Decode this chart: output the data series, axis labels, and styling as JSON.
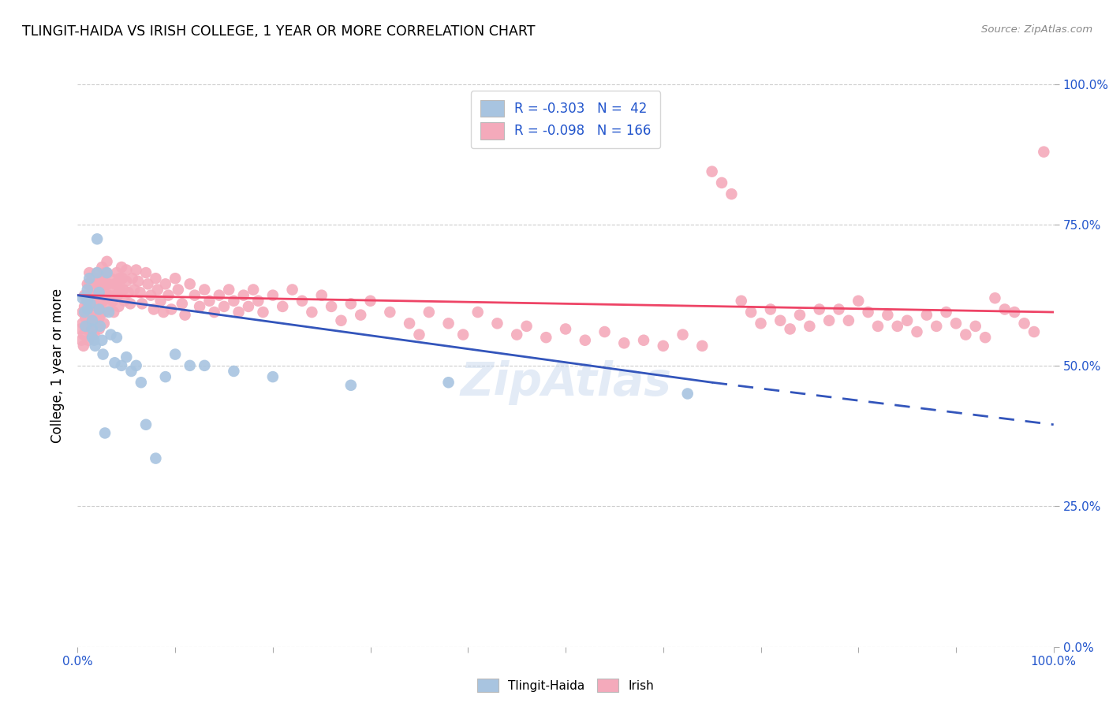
{
  "title": "TLINGIT-HAIDA VS IRISH COLLEGE, 1 YEAR OR MORE CORRELATION CHART",
  "source": "Source: ZipAtlas.com",
  "ylabel": "College, 1 year or more",
  "legend_blue_label": "R = -0.303   N =  42",
  "legend_pink_label": "R = -0.098   N = 166",
  "legend_bottom": [
    "Tlingit-Haida",
    "Irish"
  ],
  "blue_color": "#A8C4E0",
  "pink_color": "#F4AABB",
  "blue_line_color": "#3355BB",
  "pink_line_color": "#EE4466",
  "watermark": "ZipAtlas",
  "blue_scatter": [
    [
      0.005,
      0.62
    ],
    [
      0.007,
      0.595
    ],
    [
      0.008,
      0.57
    ],
    [
      0.01,
      0.635
    ],
    [
      0.01,
      0.615
    ],
    [
      0.01,
      0.6
    ],
    [
      0.012,
      0.655
    ],
    [
      0.013,
      0.61
    ],
    [
      0.015,
      0.58
    ],
    [
      0.015,
      0.565
    ],
    [
      0.015,
      0.55
    ],
    [
      0.017,
      0.545
    ],
    [
      0.018,
      0.535
    ],
    [
      0.02,
      0.725
    ],
    [
      0.02,
      0.665
    ],
    [
      0.022,
      0.63
    ],
    [
      0.022,
      0.6
    ],
    [
      0.023,
      0.57
    ],
    [
      0.025,
      0.545
    ],
    [
      0.026,
      0.52
    ],
    [
      0.028,
      0.38
    ],
    [
      0.03,
      0.665
    ],
    [
      0.032,
      0.595
    ],
    [
      0.034,
      0.555
    ],
    [
      0.038,
      0.505
    ],
    [
      0.04,
      0.55
    ],
    [
      0.045,
      0.5
    ],
    [
      0.05,
      0.515
    ],
    [
      0.055,
      0.49
    ],
    [
      0.06,
      0.5
    ],
    [
      0.065,
      0.47
    ],
    [
      0.07,
      0.395
    ],
    [
      0.08,
      0.335
    ],
    [
      0.09,
      0.48
    ],
    [
      0.1,
      0.52
    ],
    [
      0.115,
      0.5
    ],
    [
      0.13,
      0.5
    ],
    [
      0.16,
      0.49
    ],
    [
      0.2,
      0.48
    ],
    [
      0.28,
      0.465
    ],
    [
      0.38,
      0.47
    ],
    [
      0.625,
      0.45
    ]
  ],
  "pink_scatter": [
    [
      0.003,
      0.565
    ],
    [
      0.004,
      0.545
    ],
    [
      0.005,
      0.595
    ],
    [
      0.005,
      0.575
    ],
    [
      0.006,
      0.555
    ],
    [
      0.006,
      0.535
    ],
    [
      0.007,
      0.625
    ],
    [
      0.007,
      0.605
    ],
    [
      0.008,
      0.585
    ],
    [
      0.008,
      0.565
    ],
    [
      0.009,
      0.615
    ],
    [
      0.009,
      0.595
    ],
    [
      0.01,
      0.645
    ],
    [
      0.01,
      0.625
    ],
    [
      0.01,
      0.605
    ],
    [
      0.01,
      0.585
    ],
    [
      0.011,
      0.565
    ],
    [
      0.011,
      0.545
    ],
    [
      0.012,
      0.665
    ],
    [
      0.012,
      0.645
    ],
    [
      0.013,
      0.625
    ],
    [
      0.013,
      0.605
    ],
    [
      0.014,
      0.585
    ],
    [
      0.014,
      0.565
    ],
    [
      0.015,
      0.655
    ],
    [
      0.015,
      0.635
    ],
    [
      0.016,
      0.615
    ],
    [
      0.016,
      0.595
    ],
    [
      0.017,
      0.575
    ],
    [
      0.017,
      0.555
    ],
    [
      0.018,
      0.645
    ],
    [
      0.018,
      0.625
    ],
    [
      0.019,
      0.605
    ],
    [
      0.019,
      0.585
    ],
    [
      0.02,
      0.665
    ],
    [
      0.02,
      0.645
    ],
    [
      0.021,
      0.625
    ],
    [
      0.021,
      0.605
    ],
    [
      0.022,
      0.585
    ],
    [
      0.022,
      0.565
    ],
    [
      0.023,
      0.655
    ],
    [
      0.023,
      0.635
    ],
    [
      0.024,
      0.615
    ],
    [
      0.024,
      0.595
    ],
    [
      0.025,
      0.675
    ],
    [
      0.025,
      0.655
    ],
    [
      0.026,
      0.635
    ],
    [
      0.026,
      0.615
    ],
    [
      0.027,
      0.595
    ],
    [
      0.027,
      0.575
    ],
    [
      0.028,
      0.665
    ],
    [
      0.028,
      0.645
    ],
    [
      0.029,
      0.625
    ],
    [
      0.03,
      0.685
    ],
    [
      0.03,
      0.665
    ],
    [
      0.031,
      0.645
    ],
    [
      0.032,
      0.625
    ],
    [
      0.033,
      0.605
    ],
    [
      0.034,
      0.655
    ],
    [
      0.035,
      0.635
    ],
    [
      0.036,
      0.615
    ],
    [
      0.037,
      0.595
    ],
    [
      0.038,
      0.645
    ],
    [
      0.039,
      0.625
    ],
    [
      0.04,
      0.665
    ],
    [
      0.04,
      0.645
    ],
    [
      0.041,
      0.625
    ],
    [
      0.042,
      0.605
    ],
    [
      0.043,
      0.655
    ],
    [
      0.044,
      0.635
    ],
    [
      0.045,
      0.675
    ],
    [
      0.046,
      0.655
    ],
    [
      0.047,
      0.635
    ],
    [
      0.048,
      0.615
    ],
    [
      0.05,
      0.67
    ],
    [
      0.05,
      0.65
    ],
    [
      0.052,
      0.63
    ],
    [
      0.054,
      0.61
    ],
    [
      0.056,
      0.655
    ],
    [
      0.058,
      0.635
    ],
    [
      0.06,
      0.67
    ],
    [
      0.062,
      0.65
    ],
    [
      0.064,
      0.63
    ],
    [
      0.066,
      0.61
    ],
    [
      0.07,
      0.665
    ],
    [
      0.072,
      0.645
    ],
    [
      0.075,
      0.625
    ],
    [
      0.078,
      0.6
    ],
    [
      0.08,
      0.655
    ],
    [
      0.082,
      0.635
    ],
    [
      0.085,
      0.615
    ],
    [
      0.088,
      0.595
    ],
    [
      0.09,
      0.645
    ],
    [
      0.093,
      0.625
    ],
    [
      0.096,
      0.6
    ],
    [
      0.1,
      0.655
    ],
    [
      0.103,
      0.635
    ],
    [
      0.107,
      0.61
    ],
    [
      0.11,
      0.59
    ],
    [
      0.115,
      0.645
    ],
    [
      0.12,
      0.625
    ],
    [
      0.125,
      0.605
    ],
    [
      0.13,
      0.635
    ],
    [
      0.135,
      0.615
    ],
    [
      0.14,
      0.595
    ],
    [
      0.145,
      0.625
    ],
    [
      0.15,
      0.605
    ],
    [
      0.155,
      0.635
    ],
    [
      0.16,
      0.615
    ],
    [
      0.165,
      0.595
    ],
    [
      0.17,
      0.625
    ],
    [
      0.175,
      0.605
    ],
    [
      0.18,
      0.635
    ],
    [
      0.185,
      0.615
    ],
    [
      0.19,
      0.595
    ],
    [
      0.2,
      0.625
    ],
    [
      0.21,
      0.605
    ],
    [
      0.22,
      0.635
    ],
    [
      0.23,
      0.615
    ],
    [
      0.24,
      0.595
    ],
    [
      0.25,
      0.625
    ],
    [
      0.26,
      0.605
    ],
    [
      0.27,
      0.58
    ],
    [
      0.28,
      0.61
    ],
    [
      0.29,
      0.59
    ],
    [
      0.3,
      0.615
    ],
    [
      0.32,
      0.595
    ],
    [
      0.34,
      0.575
    ],
    [
      0.35,
      0.555
    ],
    [
      0.36,
      0.595
    ],
    [
      0.38,
      0.575
    ],
    [
      0.395,
      0.555
    ],
    [
      0.41,
      0.595
    ],
    [
      0.43,
      0.575
    ],
    [
      0.45,
      0.555
    ],
    [
      0.46,
      0.57
    ],
    [
      0.48,
      0.55
    ],
    [
      0.5,
      0.565
    ],
    [
      0.52,
      0.545
    ],
    [
      0.54,
      0.56
    ],
    [
      0.56,
      0.54
    ],
    [
      0.58,
      0.545
    ],
    [
      0.6,
      0.535
    ],
    [
      0.62,
      0.555
    ],
    [
      0.64,
      0.535
    ],
    [
      0.65,
      0.845
    ],
    [
      0.66,
      0.825
    ],
    [
      0.67,
      0.805
    ],
    [
      0.68,
      0.615
    ],
    [
      0.69,
      0.595
    ],
    [
      0.7,
      0.575
    ],
    [
      0.71,
      0.6
    ],
    [
      0.72,
      0.58
    ],
    [
      0.73,
      0.565
    ],
    [
      0.74,
      0.59
    ],
    [
      0.75,
      0.57
    ],
    [
      0.76,
      0.6
    ],
    [
      0.77,
      0.58
    ],
    [
      0.78,
      0.6
    ],
    [
      0.79,
      0.58
    ],
    [
      0.8,
      0.615
    ],
    [
      0.81,
      0.595
    ],
    [
      0.82,
      0.57
    ],
    [
      0.83,
      0.59
    ],
    [
      0.84,
      0.57
    ],
    [
      0.85,
      0.58
    ],
    [
      0.86,
      0.56
    ],
    [
      0.87,
      0.59
    ],
    [
      0.88,
      0.57
    ],
    [
      0.89,
      0.595
    ],
    [
      0.9,
      0.575
    ],
    [
      0.91,
      0.555
    ],
    [
      0.92,
      0.57
    ],
    [
      0.93,
      0.55
    ],
    [
      0.94,
      0.62
    ],
    [
      0.95,
      0.6
    ],
    [
      0.96,
      0.595
    ],
    [
      0.97,
      0.575
    ],
    [
      0.98,
      0.56
    ],
    [
      0.99,
      0.88
    ]
  ],
  "pink_trendline": [
    [
      0.0,
      0.625
    ],
    [
      1.0,
      0.595
    ]
  ],
  "blue_trendline_solid": [
    [
      0.0,
      0.625
    ],
    [
      0.65,
      0.47
    ]
  ],
  "blue_trendline_dash": [
    [
      0.65,
      0.47
    ],
    [
      1.0,
      0.395
    ]
  ],
  "xlim": [
    0.0,
    1.0
  ],
  "ylim": [
    0.0,
    1.0
  ],
  "ytick_labels": [
    "0.0%",
    "25.0%",
    "50.0%",
    "75.0%",
    "100.0%"
  ],
  "ytick_vals": [
    0.0,
    0.25,
    0.5,
    0.75,
    1.0
  ]
}
